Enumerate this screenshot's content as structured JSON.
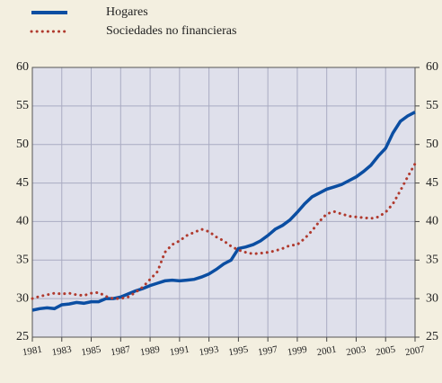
{
  "chart_data": {
    "type": "line",
    "x": [
      1981,
      1981.5,
      1982,
      1982.5,
      1983,
      1983.5,
      1984,
      1984.5,
      1985,
      1985.5,
      1986,
      1986.5,
      1987,
      1987.5,
      1988,
      1988.5,
      1989,
      1989.5,
      1990,
      1990.5,
      1991,
      1991.5,
      1992,
      1992.5,
      1993,
      1993.5,
      1994,
      1994.5,
      1995,
      1995.5,
      1996,
      1996.5,
      1997,
      1997.5,
      1998,
      1998.5,
      1999,
      1999.5,
      2000,
      2000.5,
      2001,
      2001.5,
      2002,
      2002.5,
      2003,
      2003.5,
      2004,
      2004.5,
      2005,
      2005.5,
      2006,
      2006.5,
      2007
    ],
    "series": [
      {
        "name": "Hogares",
        "color": "#0b4ea2",
        "style": "solid",
        "values": [
          28.5,
          28.7,
          28.8,
          28.7,
          29.2,
          29.3,
          29.5,
          29.4,
          29.6,
          29.6,
          30.0,
          30.0,
          30.2,
          30.6,
          31.0,
          31.3,
          31.7,
          32.0,
          32.3,
          32.4,
          32.3,
          32.4,
          32.5,
          32.8,
          33.2,
          33.8,
          34.5,
          35.0,
          36.5,
          36.7,
          37.0,
          37.5,
          38.2,
          39.0,
          39.5,
          40.2,
          41.2,
          42.3,
          43.2,
          43.7,
          44.2,
          44.5,
          44.8,
          45.3,
          45.8,
          46.5,
          47.3,
          48.5,
          49.5,
          51.5,
          53.0,
          53.7,
          54.2
        ]
      },
      {
        "name": "Sociedades no financieras",
        "color": "#b03a2e",
        "style": "dotted",
        "values": [
          30.0,
          30.3,
          30.5,
          30.7,
          30.6,
          30.7,
          30.5,
          30.4,
          30.7,
          30.8,
          30.3,
          30.0,
          30.0,
          30.2,
          30.8,
          31.5,
          32.5,
          33.5,
          36.0,
          37.0,
          37.5,
          38.2,
          38.6,
          39.0,
          38.7,
          38.0,
          37.5,
          36.8,
          36.3,
          36.0,
          35.8,
          35.9,
          36.0,
          36.2,
          36.5,
          36.9,
          37.0,
          37.8,
          38.8,
          40.0,
          41.0,
          41.3,
          41.0,
          40.7,
          40.6,
          40.5,
          40.4,
          40.6,
          41.2,
          42.3,
          44.0,
          45.8,
          47.5
        ]
      }
    ],
    "xlim": [
      1981,
      2007
    ],
    "xticks": [
      1981,
      1983,
      1985,
      1987,
      1989,
      1991,
      1993,
      1995,
      1997,
      1999,
      2001,
      2003,
      2005,
      2007
    ],
    "ylim": [
      25,
      60
    ],
    "yticks": [
      25,
      30,
      35,
      40,
      45,
      50,
      55,
      60
    ],
    "y2lim": [
      25,
      60
    ],
    "y2ticks": [
      25,
      30,
      35,
      40,
      45,
      50,
      55,
      60
    ],
    "grid": true
  }
}
